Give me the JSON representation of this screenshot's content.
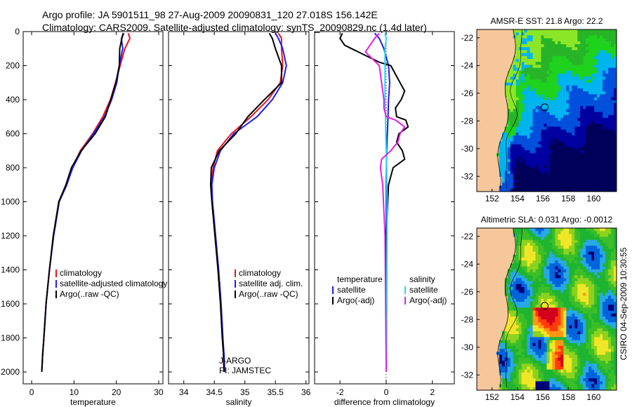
{
  "header": {
    "line1": "Argo profile: JA 5901511_98 27-Aug-2009 20090831_120 27.018S 156.142E",
    "line2": "Climatology: CARS2009. Satellite-adjusted climatology: synTS_20090829.nc (1.4d later)"
  },
  "side_stamp": "CSIRO 04-Sep-2009 10:30:55",
  "credit": {
    "program": "J-ARGO",
    "pi": "PI: JAMSTEC"
  },
  "colors": {
    "red": "#e8141e",
    "blue": "#1e1ef0",
    "black": "#000000",
    "magenta": "#e61ee6",
    "cyan": "#1edcf0",
    "land": "#f7c79c"
  },
  "chart_data": [
    {
      "id": "temperature",
      "type": "line",
      "xlabel": "temperature",
      "ylabel": "",
      "xlim": [
        -2,
        31
      ],
      "ylim": [
        2070,
        0
      ],
      "xticks": [
        0,
        10,
        20,
        30
      ],
      "yticks": [
        0,
        200,
        400,
        600,
        800,
        1000,
        1200,
        1400,
        1600,
        1800,
        2000
      ],
      "legend": {
        "position": "lower-right",
        "entries": [
          "climatology",
          "satellite-adjusted climatology",
          "Argo(..raw -QC)"
        ]
      },
      "series": [
        {
          "name": "climatology",
          "color": "red",
          "x": [
            22.8,
            23.2,
            22.0,
            20.9,
            19.8,
            18.6,
            16.8,
            14.4,
            11.5,
            9.6,
            8.3,
            6.5,
            5.2,
            4.2,
            3.4,
            2.9,
            2.6,
            2.4
          ],
          "y": [
            10,
            40,
            100,
            200,
            300,
            400,
            500,
            600,
            700,
            800,
            900,
            1000,
            1200,
            1400,
            1600,
            1800,
            1900,
            2000
          ]
        },
        {
          "name": "satellite-adjusted climatology",
          "color": "blue",
          "x": [
            21.8,
            21.2,
            21.5,
            20.7,
            20.1,
            18.9,
            17.2,
            14.6,
            11.8,
            9.7,
            8.3,
            6.5,
            5.2,
            4.2,
            3.4,
            2.9,
            2.6,
            2.4
          ],
          "y": [
            10,
            40,
            100,
            200,
            300,
            400,
            500,
            600,
            700,
            800,
            900,
            1000,
            1200,
            1400,
            1600,
            1800,
            1900,
            2000
          ]
        },
        {
          "name": "Argo(..raw -QC)",
          "color": "black",
          "x": [
            21.6,
            21.3,
            20.8,
            20.7,
            19.9,
            18.7,
            17.4,
            15.0,
            11.7,
            9.4,
            8.1,
            6.4,
            5.1,
            4.2,
            3.4,
            2.9,
            2.6,
            2.4
          ],
          "y": [
            10,
            40,
            100,
            200,
            300,
            400,
            500,
            600,
            700,
            800,
            900,
            1000,
            1200,
            1400,
            1600,
            1800,
            1900,
            2000
          ]
        }
      ]
    },
    {
      "id": "salinity",
      "type": "line",
      "xlabel": "salinity",
      "ylabel": "",
      "xlim": [
        33.75,
        36.05
      ],
      "ylim": [
        2070,
        0
      ],
      "xticks": [
        34,
        34.5,
        35,
        35.5,
        36
      ],
      "yticks": [
        0,
        200,
        400,
        600,
        800,
        1000,
        1200,
        1400,
        1600,
        1800,
        2000
      ],
      "legend": {
        "position": "lower-right",
        "entries": [
          "climatology",
          "satellite adj. clim.",
          "Argo(..raw -QC)"
        ]
      },
      "series": [
        {
          "name": "climatology",
          "color": "red",
          "x": [
            35.55,
            35.6,
            35.6,
            35.62,
            35.58,
            35.38,
            35.1,
            34.78,
            34.55,
            34.48,
            34.45,
            34.47,
            34.52,
            34.57,
            34.61,
            34.64,
            34.65,
            34.66
          ],
          "y": [
            10,
            40,
            100,
            200,
            300,
            400,
            500,
            600,
            700,
            800,
            900,
            1000,
            1200,
            1400,
            1600,
            1800,
            1900,
            2000
          ]
        },
        {
          "name": "satellite adj. clim.",
          "color": "blue",
          "x": [
            35.5,
            35.55,
            35.62,
            35.68,
            35.62,
            35.45,
            35.2,
            34.82,
            34.6,
            34.5,
            34.46,
            34.47,
            34.52,
            34.57,
            34.61,
            34.64,
            34.66,
            34.67
          ],
          "y": [
            10,
            40,
            100,
            200,
            300,
            400,
            500,
            600,
            700,
            800,
            900,
            1000,
            1200,
            1400,
            1600,
            1800,
            1900,
            2000
          ]
        },
        {
          "name": "Argo(..raw -QC)",
          "color": "black",
          "x": [
            35.4,
            35.45,
            35.5,
            35.6,
            35.6,
            35.32,
            35.05,
            34.85,
            34.58,
            34.45,
            34.44,
            34.46,
            34.51,
            34.56,
            34.6,
            34.63,
            34.65,
            34.66
          ],
          "y": [
            10,
            40,
            100,
            200,
            300,
            400,
            500,
            600,
            700,
            800,
            900,
            1000,
            1200,
            1400,
            1600,
            1800,
            1900,
            2000
          ]
        }
      ]
    },
    {
      "id": "difference",
      "type": "line",
      "xlabel": "difference from climatology",
      "ylabel": "",
      "xlim": [
        -3.1,
        2.95
      ],
      "ylim": [
        2070,
        0
      ],
      "xticks": [
        -2,
        0,
        2
      ],
      "yticks": [
        0,
        200,
        400,
        600,
        800,
        1000,
        1200,
        1400,
        1600,
        1800,
        2000
      ],
      "legend": {
        "position": "lower-right",
        "col1_title": "temperature",
        "col2_title": "salinity",
        "entries": [
          "satellite",
          "Argo(-adj)",
          "satellite",
          "Argo(-adj)"
        ]
      },
      "series": [
        {
          "name": "temperature satellite",
          "color": "blue",
          "x": [
            -0.5,
            -0.3,
            -0.1,
            0.1,
            0.15,
            0.1,
            0.08,
            0.05,
            0.02,
            0.01,
            0.0,
            0.0,
            0.0,
            0.0
          ],
          "y": [
            10,
            40,
            100,
            200,
            300,
            400,
            500,
            600,
            700,
            800,
            1000,
            1400,
            1800,
            2000
          ]
        },
        {
          "name": "temperature Argo(-adj)",
          "color": "black",
          "x": [
            -1.9,
            -2.0,
            -1.8,
            -1.5,
            -1.2,
            -0.9,
            -0.6,
            -0.3,
            0.2,
            0.4,
            0.6,
            0.8,
            0.65,
            0.4,
            0.45,
            0.85,
            0.95,
            0.55,
            0.45,
            0.7,
            0.8,
            0.3,
            0.1,
            0.0,
            0.0
          ],
          "y": [
            10,
            40,
            80,
            100,
            120,
            140,
            160,
            180,
            200,
            250,
            300,
            350,
            400,
            450,
            500,
            520,
            560,
            600,
            650,
            700,
            750,
            800,
            900,
            1200,
            2000
          ]
        },
        {
          "name": "salinity satellite",
          "color": "cyan",
          "x": [
            -0.05,
            0.0,
            -0.05,
            -0.05,
            -0.05,
            -0.05,
            -0.03,
            -0.02,
            0.0,
            0.02,
            0.04,
            0.03,
            0.02,
            0.01
          ],
          "y": [
            10,
            40,
            100,
            200,
            300,
            400,
            500,
            600,
            700,
            800,
            1000,
            1400,
            1800,
            2000
          ]
        },
        {
          "name": "salinity Argo(-adj)",
          "color": "magenta",
          "x": [
            -0.3,
            -0.5,
            -0.7,
            -0.9,
            -0.6,
            -0.3,
            -0.2,
            -0.1,
            -0.1,
            0.0,
            0.4,
            0.8,
            0.6,
            0.5,
            0.2,
            -0.2,
            -0.25,
            -0.15,
            -0.05,
            0.0
          ],
          "y": [
            10,
            40,
            80,
            120,
            160,
            200,
            300,
            400,
            450,
            500,
            520,
            560,
            600,
            650,
            700,
            750,
            800,
            900,
            1200,
            2000
          ]
        }
      ]
    },
    {
      "id": "sst-map",
      "type": "heatmap",
      "title": "AMSR-E SST: 21.8  Argo: 22.2",
      "xlim": [
        150.8,
        161.8
      ],
      "ylim": [
        -33.1,
        -21.4
      ],
      "xticks": [
        152,
        154,
        156,
        158,
        160
      ],
      "yticks": [
        -22,
        -24,
        -26,
        -28,
        -30,
        -32
      ],
      "marker": {
        "lon": 156.142,
        "lat": -27.018
      },
      "palette": [
        "#00005a",
        "#0000a0",
        "#0050dc",
        "#00b4f0",
        "#1ed21e",
        "#28b428",
        "#8ce628"
      ]
    },
    {
      "id": "sla-map",
      "type": "heatmap",
      "title": "Altimetric SLA: 0.031  Argo: -0.0012",
      "xlim": [
        150.8,
        161.8
      ],
      "ylim": [
        -33.1,
        -21.4
      ],
      "xticks": [
        152,
        154,
        156,
        158,
        160
      ],
      "yticks": [
        -22,
        -24,
        -26,
        -28,
        -30,
        -32
      ],
      "marker": {
        "lon": 156.142,
        "lat": -27.018
      },
      "palette": [
        "#000078",
        "#0064dc",
        "#28a8e6",
        "#1eb432",
        "#3cbe28",
        "#8cd21e",
        "#f0e628",
        "#ff9614",
        "#ff3c0a",
        "#d2001e"
      ]
    }
  ]
}
